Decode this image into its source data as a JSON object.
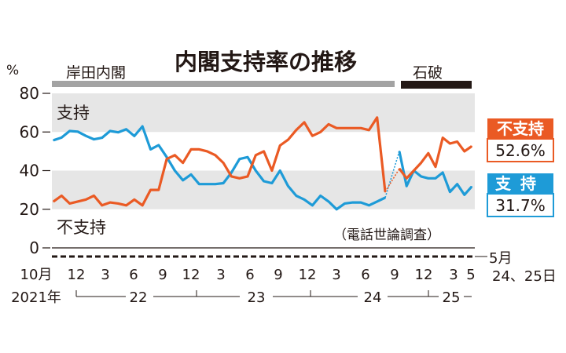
{
  "chart_data": {
    "type": "line",
    "title": "内閣支持率の推移",
    "note": "（電話世論調査）",
    "y_unit": "%",
    "ylim": [
      0,
      80
    ],
    "yticks": [
      "0",
      "20",
      "40",
      "60",
      "80"
    ],
    "grid_bands": true,
    "eras": [
      {
        "name": "岸田内閣",
        "color": "#a3a3a3"
      },
      {
        "name": "石破",
        "color": "#231815"
      }
    ],
    "x_axis": {
      "month_labels": [
        "10月",
        "12",
        "3",
        "6",
        "9",
        "12",
        "3",
        "6",
        "9",
        "12",
        "3",
        "6",
        "9",
        "12",
        "3",
        "5"
      ],
      "year_labels": [
        "2021年",
        "22",
        "23",
        "24",
        "25"
      ],
      "last_date": "5月24、25日"
    },
    "series": [
      {
        "name": "支持",
        "color": "#1e9bd7",
        "latest_label": "31.7%",
        "values": [
          55.7,
          57.1,
          60.5,
          60.2,
          58.0,
          56.2,
          57.0,
          60.5,
          59.8,
          61.4,
          57.9,
          62.9,
          51.0,
          53.2,
          47.0,
          40.0,
          35.0,
          38.0,
          33.0,
          33.0,
          33.0,
          33.5,
          39.0,
          46.0,
          47.0,
          40.0,
          34.5,
          33.5,
          40.0,
          32.0,
          27.0,
          25.0,
          22.0,
          27.0,
          24.0,
          20.0,
          23.0,
          23.5,
          23.5,
          22.0,
          24.0,
          26.0,
          50.0,
          32.0,
          40.0,
          37.0,
          36.0,
          36.0,
          39.0,
          29.0,
          33.0,
          27.5,
          31.7
        ]
      },
      {
        "name": "不支持",
        "color": "#ea5a24",
        "latest_label": "52.6%",
        "values": [
          24.0,
          27.0,
          23.0,
          24.0,
          25.0,
          27.0,
          22.0,
          23.5,
          23.0,
          22.0,
          25.0,
          22.0,
          30.0,
          30.0,
          46.0,
          48.0,
          44.0,
          51.0,
          51.0,
          50.0,
          48.0,
          44.0,
          37.0,
          36.0,
          37.0,
          48.0,
          50.0,
          40.0,
          53.0,
          56.0,
          61.0,
          65.0,
          58.0,
          60.0,
          64.0,
          62.0,
          62.0,
          62.0,
          62.0,
          61.0,
          67.5,
          29.0,
          41.0,
          36.0,
          40.0,
          44.0,
          49.0,
          42.0,
          57.0,
          54.0,
          55.0,
          50.0,
          52.6
        ]
      }
    ]
  }
}
